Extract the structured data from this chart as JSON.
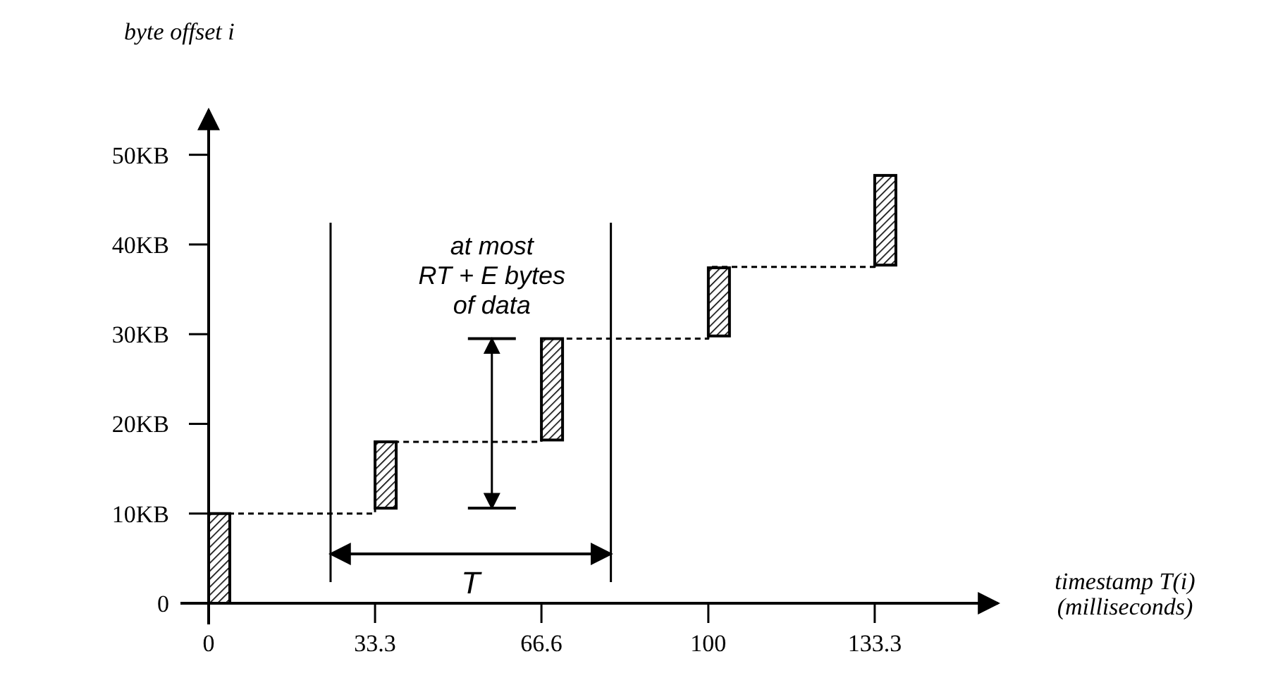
{
  "chart_data": {
    "type": "bar",
    "xlabel": "timestamp T(i)\n(milliseconds)",
    "ylabel": "byte offset i",
    "x": [
      0,
      33.3,
      66.6,
      100,
      133.3
    ],
    "series": [
      {
        "color": "#000000",
        "values": [
          10,
          7.4,
          11.3,
          7.6,
          10
        ],
        "base": [
          0,
          10.6,
          18.2,
          29.8,
          37.7
        ]
      },
      {
        "type": "step",
        "color": "#000000",
        "line_style": "dashed",
        "values": [
          10,
          18,
          29.5,
          37.5,
          47.7
        ]
      }
    ],
    "xlim": [
      0,
      158
    ],
    "ylim": [
      0,
      55
    ],
    "xticks": [
      0,
      33.3,
      66.6,
      100,
      133.3
    ],
    "yticks": [
      0,
      {
        "value": 10,
        "label": "10KB"
      },
      {
        "value": 20,
        "label": "20KB"
      },
      {
        "value": 30,
        "label": "30KB"
      },
      {
        "value": 40,
        "label": "40KB"
      },
      {
        "value": 50,
        "label": "50KB"
      }
    ],
    "ref_lines": [
      {
        "axis": "x",
        "value": 24.4,
        "color": "#000000"
      },
      {
        "axis": "x",
        "value": 80.5,
        "color": "#000000"
      }
    ],
    "annotations": [
      "at most\nRT + E bytes\nof data",
      "T"
    ],
    "grid": false
  }
}
